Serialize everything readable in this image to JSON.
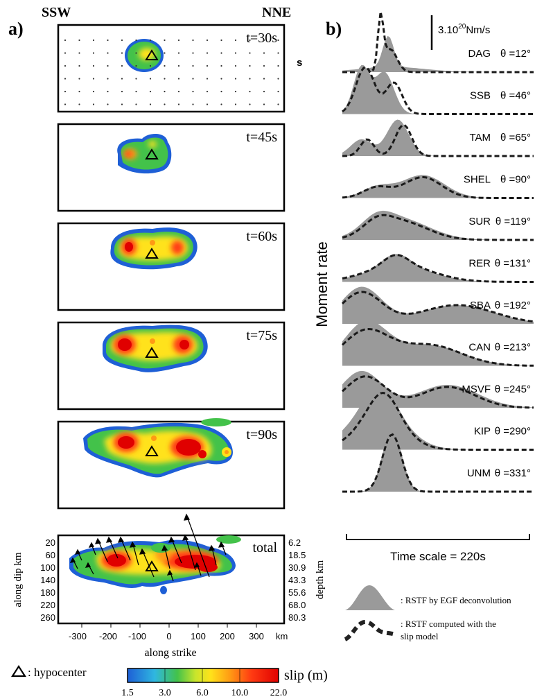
{
  "panel_a": {
    "label": "a)",
    "left_dir": "SSW",
    "right_dir": "NNE",
    "stray_label": "s",
    "snapshots": [
      {
        "time": "t=30s"
      },
      {
        "time": "t=45s"
      },
      {
        "time": "t=60s"
      },
      {
        "time": "t=75s"
      },
      {
        "time": "t=90s"
      }
    ],
    "total": {
      "label": "total",
      "y_left_label": "along dip km",
      "y_right_label": "depth km",
      "x_label": "along strike",
      "x_unit": "km",
      "x_ticks": [
        "-300",
        "-200",
        "-100",
        "0",
        "100",
        "200",
        "300"
      ],
      "dip_ticks": [
        "20",
        "60",
        "100",
        "140",
        "180",
        "220",
        "260"
      ],
      "depth_ticks": [
        "6.2",
        "18.5",
        "30.9",
        "43.3",
        "55.6",
        "68.0",
        "80.3"
      ]
    },
    "legend": {
      "hypocenter_label": ": hypocenter",
      "slip_label": "slip (m)",
      "colorbar_ticks": [
        "1.5",
        "3.0",
        "6.0",
        "10.0",
        "22.0"
      ],
      "colors": [
        "#1e5fd6",
        "#2fb7e0",
        "#43c24a",
        "#c8e52c",
        "#ffe21a",
        "#ff9a14",
        "#ff3b12",
        "#e00000"
      ]
    }
  },
  "panel_b": {
    "label": "b)",
    "scale_label": "3.10",
    "scale_exp": "20",
    "scale_unit": "Nm/s",
    "y_label": "Moment rate",
    "time_scale": "Time scale = 220s",
    "stations": [
      {
        "name": "DAG",
        "theta": "θ =12°"
      },
      {
        "name": "SSB",
        "theta": "θ =46°"
      },
      {
        "name": "TAM",
        "theta": "θ =65°"
      },
      {
        "name": "SHEL",
        "theta": "θ =90°"
      },
      {
        "name": "SUR",
        "theta": "θ =119°"
      },
      {
        "name": "RER",
        "theta": "θ =131°"
      },
      {
        "name": "SBA",
        "theta": "θ =192°"
      },
      {
        "name": "CAN",
        "theta": "θ =213°"
      },
      {
        "name": "MSVF",
        "theta": "θ =245°"
      },
      {
        "name": "KIP",
        "theta": "θ =290°"
      },
      {
        "name": "UNM",
        "theta": "θ =331°"
      }
    ],
    "legend": {
      "egf_label": ": RSTF by EGF deconvolution",
      "model_label_1": ": RSTF computed with the",
      "model_label_2": "slip model"
    }
  }
}
